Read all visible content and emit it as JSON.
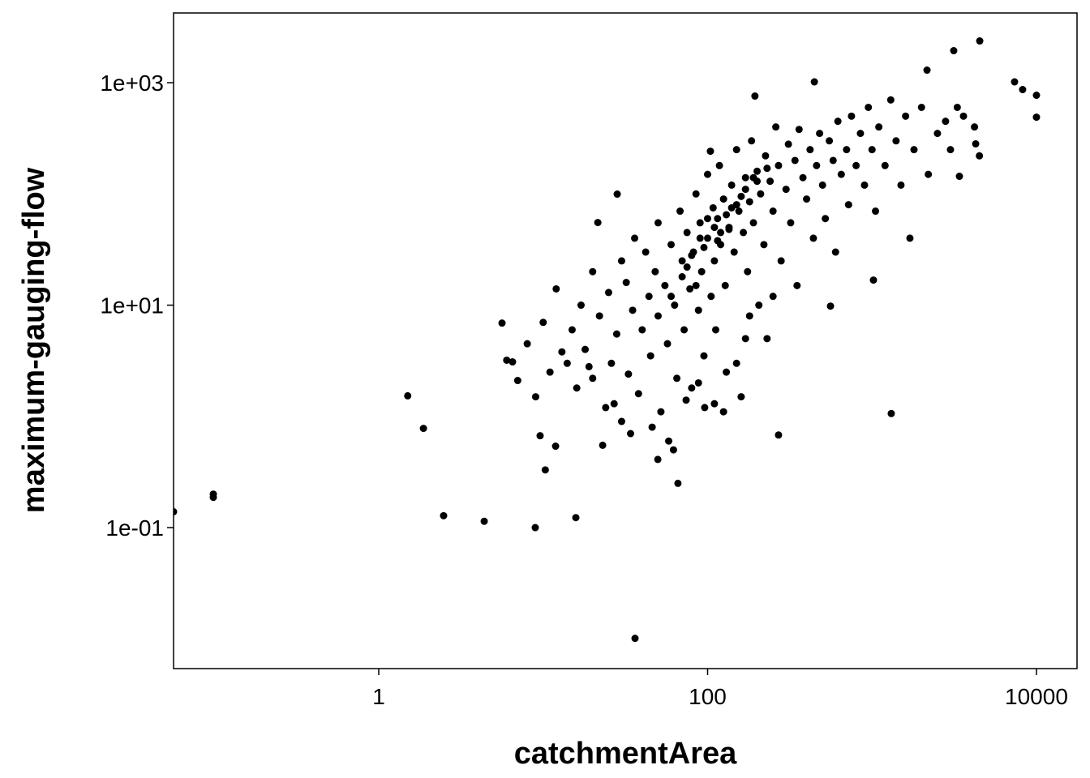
{
  "chart_data": {
    "type": "scatter",
    "x_label": "catchmentArea",
    "y_label": "maximum-gauging-flow",
    "x_log": true,
    "y_log": true,
    "grid": false,
    "color": "#000000",
    "xlim": [
      0.0565,
      17650
    ],
    "ylim": [
      0.0054,
      4236
    ],
    "xticks": [
      1,
      100,
      10000
    ],
    "yticks": [
      {
        "value": 0.1,
        "label": "1e-01"
      },
      {
        "value": 10,
        "label": "1e+01"
      },
      {
        "value": 1000,
        "label": "1e+03"
      }
    ],
    "x": [
      0.0565,
      0.0986,
      0.0986,
      1.5,
      1.87,
      2.48,
      4.38,
      8.95,
      15.8,
      36.2,
      1309,
      270,
      10000,
      10000,
      4520,
      7360,
      8240,
      3140,
      2160,
      446,
      194,
      3400,
      4270,
      1020,
      559,
      28.2,
      21.5,
      5.62,
      6.51,
      9.58,
      10.3,
      11.9,
      23,
      49.8,
      104,
      6,
      7,
      8,
      9,
      10,
      11,
      12,
      13,
      15,
      16,
      17,
      18,
      20,
      20,
      22,
      24,
      25,
      26,
      28,
      30,
      30,
      32,
      33,
      35,
      36,
      38,
      40,
      42,
      44,
      45,
      48,
      50,
      50,
      52,
      55,
      57,
      60,
      62,
      63,
      65,
      68,
      70,
      72,
      75,
      78,
      80,
      82,
      85,
      88,
      90,
      92,
      95,
      100,
      100,
      105,
      108,
      110,
      112,
      115,
      118,
      120,
      125,
      128,
      130,
      135,
      140,
      145,
      150,
      155,
      160,
      165,
      170,
      175,
      180,
      185,
      190,
      200,
      205,
      210,
      220,
      225,
      230,
      240,
      250,
      260,
      270,
      280,
      300,
      310,
      320,
      340,
      350,
      360,
      380,
      400,
      420,
      440,
      460,
      480,
      500,
      520,
      550,
      580,
      600,
      620,
      650,
      700,
      720,
      750,
      800,
      850,
      900,
      950,
      1000,
      1050,
      1100,
      1200,
      1300,
      1400,
      1500,
      1600,
      1700,
      1800,
      2000,
      2200,
      2500,
      2800,
      3000,
      3300,
      3600,
      4200,
      4500,
      14,
      19,
      27,
      34,
      46,
      58,
      66,
      74,
      88,
      96,
      110,
      125,
      150,
      180,
      250,
      170,
      70,
      80,
      90,
      110,
      130,
      150,
      170,
      200,
      60,
      75,
      95,
      120,
      140,
      160,
      190,
      230,
      85,
      100,
      115,
      135
    ],
    "values": [
      0.139,
      0.2,
      0.187,
      1.53,
      0.78,
      0.128,
      0.114,
      0.1,
      0.123,
      0.0101,
      1.06,
      0.68,
      771,
      490,
      2373,
      1017,
      867,
      1941,
      1297,
      1017,
      758,
      144,
      282,
      16.8,
      9.8,
      99.6,
      55.3,
      6.9,
      3.09,
      0.67,
      0.33,
      0.54,
      0.55,
      0.41,
      242,
      3.2,
      2.1,
      4.5,
      1.5,
      7,
      2.5,
      14,
      3.8,
      6,
      1.8,
      10,
      4,
      20,
      2.2,
      8,
      1.2,
      13,
      3,
      5.5,
      25,
      0.9,
      16,
      2.4,
      9,
      40,
      1.6,
      6,
      30,
      12,
      3.5,
      20,
      55,
      8,
      1.1,
      15,
      4.5,
      35,
      0.5,
      10,
      2.2,
      70,
      25,
      6,
      45,
      14,
      1.8,
      30,
      100,
      9,
      55,
      20,
      3.5,
      40,
      150,
      12,
      75,
      25,
      6,
      60,
      180,
      35,
      90,
      15,
      2.5,
      50,
      120,
      30,
      250,
      70,
      1.5,
      45,
      140,
      20,
      85,
      300,
      55,
      160,
      10,
      100,
      35,
      220,
      5,
      130,
      70,
      400,
      180,
      25,
      110,
      280,
      55,
      200,
      15,
      380,
      140,
      90,
      250,
      40,
      180,
      350,
      120,
      60,
      300,
      200,
      30,
      450,
      150,
      250,
      80,
      500,
      180,
      350,
      120,
      600,
      250,
      70,
      400,
      180,
      700,
      300,
      120,
      500,
      40,
      250,
      600,
      150,
      350,
      450,
      250,
      600,
      500,
      400,
      220,
      3,
      2.8,
      1.3,
      0.7,
      0.8,
      0.6,
      0.25,
      1.4,
      2,
      1.2,
      1.3,
      1.1,
      3,
      8,
      12,
      5,
      18,
      28,
      40,
      50,
      65,
      80,
      110,
      130,
      12,
      22,
      33,
      45,
      75,
      95,
      140,
      170,
      15,
      60,
      38,
      48
    ]
  }
}
